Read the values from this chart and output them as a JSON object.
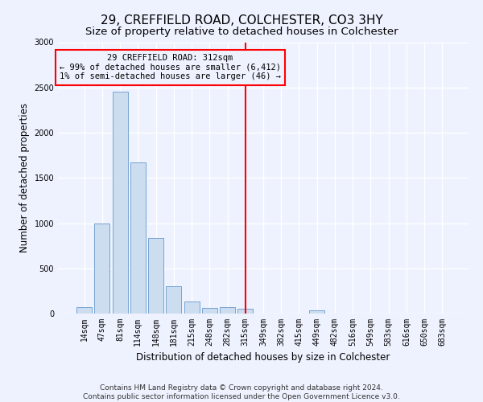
{
  "title": "29, CREFFIELD ROAD, COLCHESTER, CO3 3HY",
  "subtitle": "Size of property relative to detached houses in Colchester",
  "xlabel": "Distribution of detached houses by size in Colchester",
  "ylabel": "Number of detached properties",
  "bar_labels": [
    "14sqm",
    "47sqm",
    "81sqm",
    "114sqm",
    "148sqm",
    "181sqm",
    "215sqm",
    "248sqm",
    "282sqm",
    "315sqm",
    "349sqm",
    "382sqm",
    "415sqm",
    "449sqm",
    "482sqm",
    "516sqm",
    "549sqm",
    "583sqm",
    "616sqm",
    "650sqm",
    "683sqm"
  ],
  "bar_values": [
    75,
    1000,
    2450,
    1670,
    840,
    300,
    130,
    65,
    75,
    55,
    0,
    0,
    0,
    35,
    0,
    0,
    0,
    0,
    0,
    0,
    0
  ],
  "bar_color": "#ccddf0",
  "bar_edgecolor": "#6699cc",
  "vline_x": 9,
  "vline_color": "red",
  "annotation_text": "29 CREFFIELD ROAD: 312sqm\n← 99% of detached houses are smaller (6,412)\n1% of semi-detached houses are larger (46) →",
  "annotation_box_color": "red",
  "ylim": [
    0,
    3000
  ],
  "yticks": [
    0,
    500,
    1000,
    1500,
    2000,
    2500,
    3000
  ],
  "footer": "Contains HM Land Registry data © Crown copyright and database right 2024.\nContains public sector information licensed under the Open Government Licence v3.0.",
  "bg_color": "#eef2ff",
  "grid_color": "#ffffff",
  "title_fontsize": 11,
  "subtitle_fontsize": 9.5,
  "label_fontsize": 8.5,
  "tick_fontsize": 7,
  "footer_fontsize": 6.5,
  "annotation_fontsize": 7.5
}
